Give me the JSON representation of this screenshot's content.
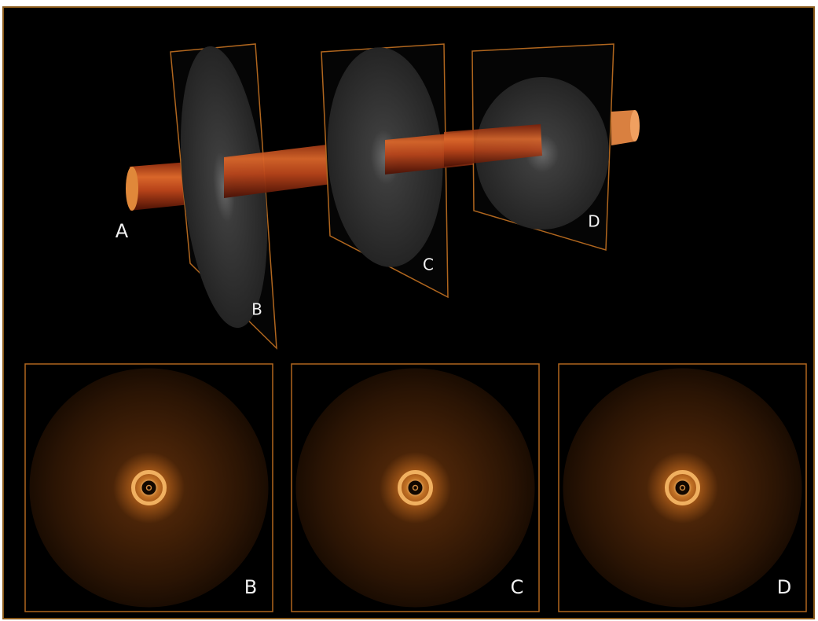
{
  "render": {
    "labels": [
      "A",
      "B",
      "C",
      "D"
    ]
  },
  "panels": [
    {
      "label": "B"
    },
    {
      "label": "C"
    },
    {
      "label": "D"
    }
  ]
}
